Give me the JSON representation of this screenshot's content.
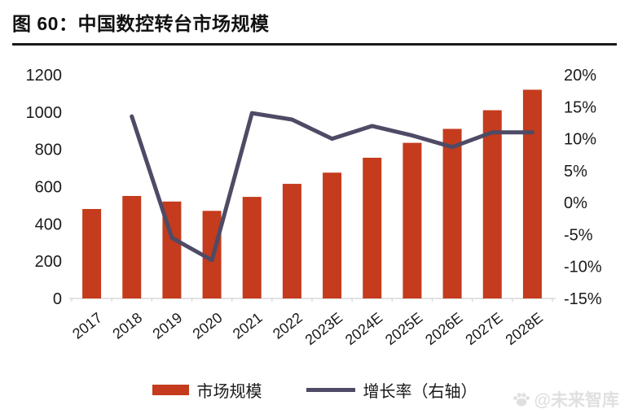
{
  "figure": {
    "title": "图 60：中国数控转台市场规模"
  },
  "chart_data": {
    "type": "bar+line",
    "categories": [
      "2017",
      "2018",
      "2019",
      "2020",
      "2021",
      "2022",
      "2023E",
      "2024E",
      "2025E",
      "2026E",
      "2027E",
      "2028E"
    ],
    "series": [
      {
        "name": "市场规模",
        "type": "bar",
        "axis": "left",
        "values": [
          480,
          550,
          520,
          470,
          545,
          615,
          675,
          755,
          835,
          910,
          1010,
          1120
        ]
      },
      {
        "name": "增长率（右轴）",
        "type": "line",
        "axis": "right",
        "values": [
          null,
          13.5,
          -5.5,
          -9,
          14,
          13,
          10,
          12,
          10.5,
          8.7,
          11,
          11
        ]
      }
    ],
    "left_axis": {
      "min": 0,
      "max": 1200,
      "step": 200,
      "tick_labels": [
        "0",
        "200",
        "400",
        "600",
        "800",
        "1000",
        "1200"
      ]
    },
    "right_axis": {
      "min": -15,
      "max": 20,
      "step": 5,
      "tick_labels": [
        "-15%",
        "-10%",
        "-5%",
        "0%",
        "5%",
        "10%",
        "15%",
        "20%"
      ]
    },
    "grid": false,
    "legend_position": "bottom"
  },
  "watermark": {
    "icon": "paw-icon",
    "text": "@未来智库"
  },
  "colors": {
    "bar": "#C43B1D",
    "line": "#4F4A65",
    "text": "#1A1A1A",
    "axis_line": "#D9D9D9",
    "watermark": "#E0E0E0"
  }
}
